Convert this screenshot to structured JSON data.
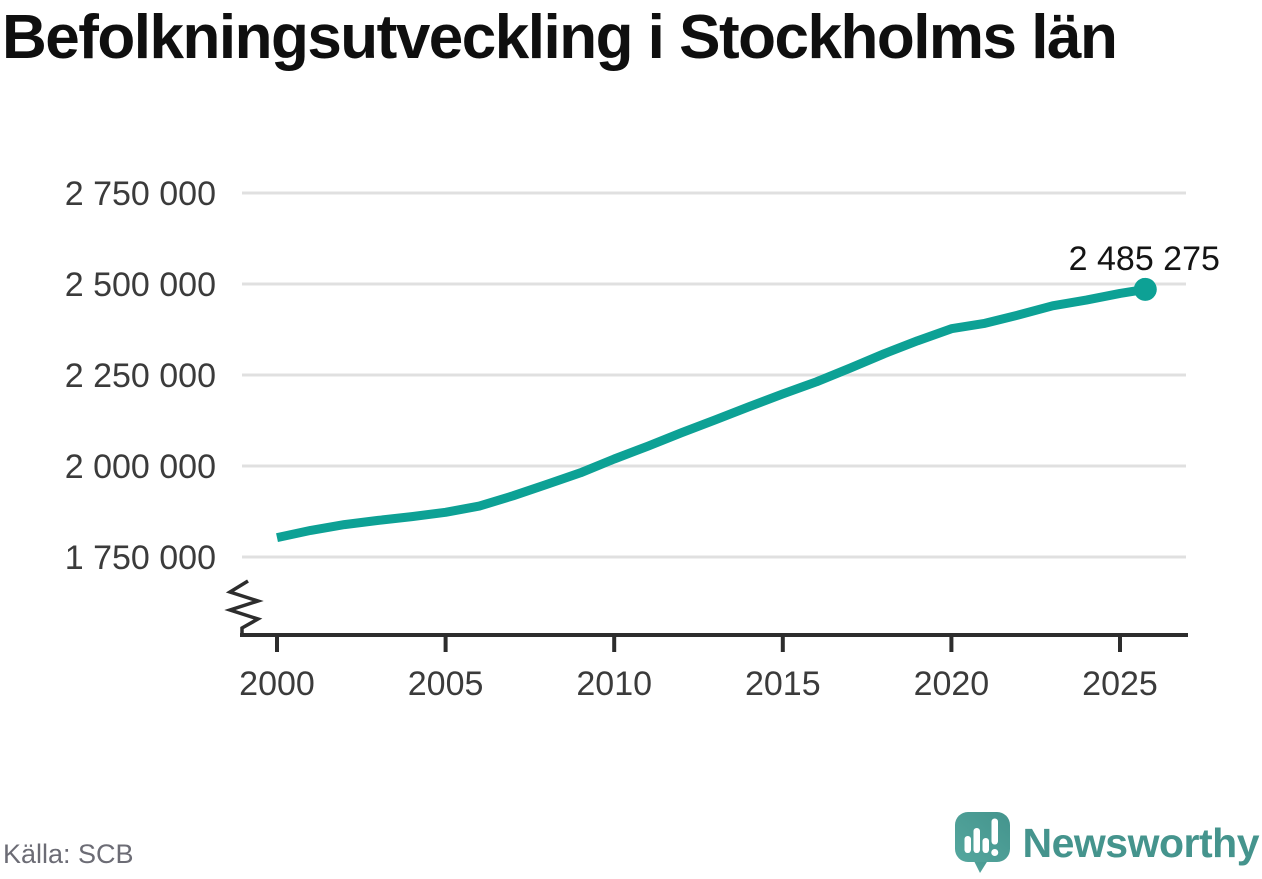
{
  "title": "Befolkningsutveckling i Stockholms län",
  "source": "Källa: SCB",
  "logo_text": "Newsworthy",
  "colors": {
    "line": "#0da195",
    "grid": "#e0e0e0",
    "axis": "#2d2d2d",
    "tick_text": "#3b3b3b",
    "annotation_text": "#141414",
    "source_text": "#6c6c75",
    "logo_teal": "#45948d",
    "logo_icon_light": "#55a79e",
    "logo_icon_dark": "#44948d"
  },
  "chart_data": {
    "type": "line",
    "title": "Befolkningsutveckling i Stockholms län",
    "xlabel": "",
    "ylabel": "",
    "grid": "horizontal",
    "legend": "none",
    "y_axis_break": true,
    "xlim": [
      1999,
      2027
    ],
    "ylim": [
      1750000,
      2750000
    ],
    "x": [
      2000,
      2001,
      2002,
      2003,
      2004,
      2005,
      2006,
      2007,
      2008,
      2009,
      2010,
      2011,
      2012,
      2013,
      2014,
      2015,
      2016,
      2017,
      2018,
      2019,
      2020,
      2021,
      2022,
      2023,
      2024,
      2025,
      2025.75
    ],
    "series": [
      {
        "name": "Stockholms län",
        "values": [
          1803377,
          1823210,
          1838882,
          1850467,
          1860872,
          1872900,
          1889945,
          1918104,
          1949516,
          1981263,
          2019182,
          2054343,
          2091473,
          2127006,
          2163042,
          2198044,
          2231439,
          2269060,
          2308143,
          2344124,
          2377081,
          2391990,
          2415139,
          2440027,
          2455800,
          2474100,
          2485275
        ]
      }
    ],
    "x_ticks": [
      {
        "value": 2000,
        "label": "2000"
      },
      {
        "value": 2005,
        "label": "2005"
      },
      {
        "value": 2010,
        "label": "2010"
      },
      {
        "value": 2015,
        "label": "2015"
      },
      {
        "value": 2020,
        "label": "2020"
      },
      {
        "value": 2025,
        "label": "2025"
      }
    ],
    "y_ticks": [
      {
        "value": 1750000,
        "label": "1 750 000"
      },
      {
        "value": 2000000,
        "label": "2 000 000"
      },
      {
        "value": 2250000,
        "label": "2 250 000"
      },
      {
        "value": 2500000,
        "label": "2 500 000"
      },
      {
        "value": 2750000,
        "label": "2 750 000"
      }
    ],
    "end_point": {
      "x": 2025.75,
      "value": 2485275
    },
    "end_label": "2 485 275"
  }
}
